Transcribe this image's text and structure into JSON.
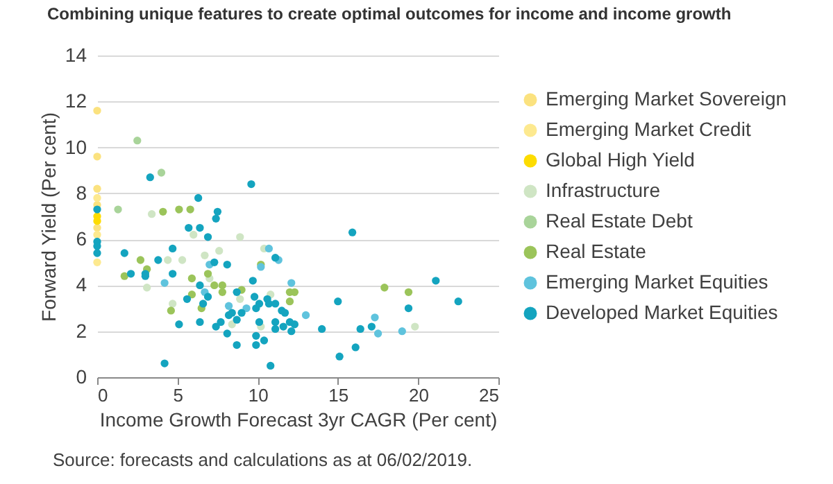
{
  "chart_data": {
    "type": "scatter",
    "title": "Combining unique features to create optimal outcomes for income and income growth",
    "xlabel": "Income Growth Forecast 3yr CAGR (Per cent)",
    "ylabel": "Forward Yield (Per cent)",
    "xlim": [
      0,
      25
    ],
    "xticks": [
      0,
      5,
      10,
      15,
      20,
      25
    ],
    "ylim": [
      0,
      14
    ],
    "yticks": [
      0,
      2,
      4,
      6,
      8,
      10,
      12,
      14
    ],
    "grid": "y",
    "legend": "right",
    "marker": "circle",
    "annotations": [
      "Source: forecasts and calculations as at 06/02/2019."
    ],
    "series": [
      {
        "name": "Emerging Market Sovereign",
        "color": "#fbe27f",
        "x": [
          0,
          0,
          0,
          0,
          0
        ],
        "values": [
          11.6,
          9.6,
          8.2,
          7.5,
          6.5
        ]
      },
      {
        "name": "Emerging Market Credit",
        "color": "#fde98f",
        "x": [
          0,
          0,
          0
        ],
        "values": [
          7.8,
          6.2,
          5.0
        ]
      },
      {
        "name": "Global High Yield",
        "color": "#fddc00",
        "x": [
          0,
          0
        ],
        "values": [
          7.0,
          6.8
        ]
      },
      {
        "name": "Infrastructure",
        "color": "#cfe5c4",
        "x": [
          5.3,
          4.4,
          3.1,
          3.4,
          6.0,
          6.7,
          7.6,
          7.0,
          4.7,
          8.9,
          8.4,
          8.9,
          10.4,
          10.2,
          10.8,
          19.8
        ],
        "values": [
          5.1,
          5.1,
          3.9,
          7.1,
          6.2,
          5.3,
          5.5,
          4.3,
          3.2,
          6.1,
          2.3,
          3.4,
          5.6,
          2.2,
          3.6,
          2.2
        ]
      },
      {
        "name": "Real Estate Debt",
        "color": "#a9d49a",
        "x": [
          2.5,
          4.0,
          1.3
        ],
        "values": [
          10.3,
          8.9,
          7.3
        ]
      },
      {
        "name": "Real Estate",
        "color": "#9bc45a",
        "x": [
          4.1,
          5.1,
          5.8,
          2.7,
          1.7,
          3.1,
          5.9,
          6.9,
          7.8,
          7.8,
          5.9,
          6.5,
          4.6,
          9.0,
          10.2,
          7.3,
          17.9,
          19.4,
          12.0,
          12.3,
          12.0
        ],
        "values": [
          7.2,
          7.3,
          7.3,
          5.1,
          4.4,
          4.7,
          4.3,
          4.5,
          4.0,
          3.7,
          3.6,
          3.0,
          2.9,
          3.8,
          4.9,
          4.0,
          3.9,
          3.7,
          3.7,
          3.7,
          3.3
        ]
      },
      {
        "name": "Emerging Market Equities",
        "color": "#5fc3dd",
        "x": [
          4.2,
          7.0,
          6.7,
          8.2,
          9.3,
          10.7,
          10.2,
          13.0,
          17.3,
          17.5,
          19.0,
          12.1,
          11.3
        ],
        "values": [
          4.1,
          4.9,
          3.7,
          3.1,
          3.0,
          5.6,
          4.8,
          2.7,
          2.6,
          1.9,
          2.0,
          4.1,
          5.1
        ]
      },
      {
        "name": "Developed Market Equities",
        "color": "#14a4bf",
        "x": [
          0,
          0,
          0,
          0,
          1.7,
          2.1,
          3.0,
          3.0,
          3.3,
          3.8,
          4.7,
          4.7,
          4.2,
          5.1,
          5.6,
          5.7,
          6.3,
          6.4,
          6.4,
          6.4,
          6.9,
          6.9,
          6.6,
          7.3,
          7.4,
          7.5,
          7.4,
          7.7,
          8.1,
          8.2,
          8.1,
          8.4,
          8.7,
          8.7,
          8.7,
          9.0,
          9.6,
          9.7,
          9.8,
          9.9,
          9.9,
          9.9,
          10.1,
          10.1,
          10.4,
          10.6,
          10.7,
          10.8,
          11.1,
          11.1,
          11.1,
          11.1,
          11.5,
          11.7,
          11.6,
          12.0,
          12.3,
          12.1,
          15.9,
          21.1,
          22.5,
          19.4,
          15.0,
          14.0,
          16.4,
          17.1,
          16.1,
          15.1
        ],
        "values": [
          7.3,
          5.9,
          5.7,
          5.4,
          5.4,
          4.5,
          4.5,
          4.4,
          8.7,
          5.1,
          5.6,
          4.5,
          0.6,
          2.3,
          3.4,
          6.5,
          7.8,
          6.5,
          4.0,
          2.4,
          6.1,
          3.5,
          3.2,
          5.0,
          6.9,
          7.2,
          2.2,
          2.4,
          4.9,
          2.7,
          1.9,
          2.8,
          3.7,
          2.5,
          1.4,
          2.8,
          8.4,
          4.2,
          3.5,
          3.0,
          1.8,
          1.4,
          2.4,
          3.2,
          1.6,
          3.4,
          3.2,
          0.5,
          5.2,
          3.2,
          2.4,
          2.1,
          2.9,
          2.8,
          2.2,
          2.4,
          2.3,
          2.0,
          6.3,
          4.2,
          3.3,
          3.0,
          3.3,
          2.1,
          2.1,
          2.2,
          1.3,
          0.9
        ]
      }
    ]
  }
}
